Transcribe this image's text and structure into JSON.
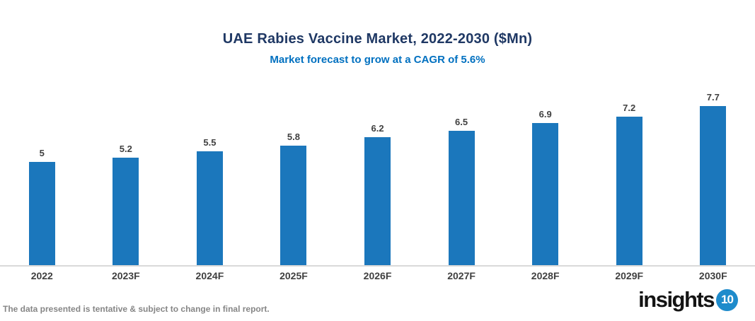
{
  "header": {
    "title": "UAE Rabies Vaccine Market, 2022-2030 ($Mn)",
    "subtitle": "Market forecast to grow at a CAGR of 5.6%"
  },
  "chart_data": {
    "type": "bar",
    "title": "UAE Rabies Vaccine Market, 2022-2030 ($Mn)",
    "subtitle": "Market forecast to grow at a CAGR of 5.6%",
    "categories": [
      "2022",
      "2023F",
      "2024F",
      "2025F",
      "2026F",
      "2027F",
      "2028F",
      "2029F",
      "2030F"
    ],
    "values": [
      5,
      5.2,
      5.5,
      5.8,
      6.2,
      6.5,
      6.9,
      7.2,
      7.7
    ],
    "value_labels": [
      "5",
      "5.2",
      "5.5",
      "5.8",
      "6.2",
      "6.5",
      "6.9",
      "7.2",
      "7.7"
    ],
    "xlabel": "",
    "ylabel": "",
    "ylim": [
      0,
      8
    ],
    "grid": false,
    "legend_position": "none",
    "bar_color": "#1B77BC"
  },
  "footer": {
    "disclaimer": "The data presented is tentative & subject to change in final report.",
    "logo_text": "insights",
    "logo_badge": "10"
  },
  "colors": {
    "title": "#1F3864",
    "subtitle": "#0070C0",
    "bar": "#1B77BC",
    "axis_line": "#D9D9D9",
    "label": "#404040",
    "footer_text": "#868686",
    "logo_badge_bg": "#1E8BCB"
  }
}
